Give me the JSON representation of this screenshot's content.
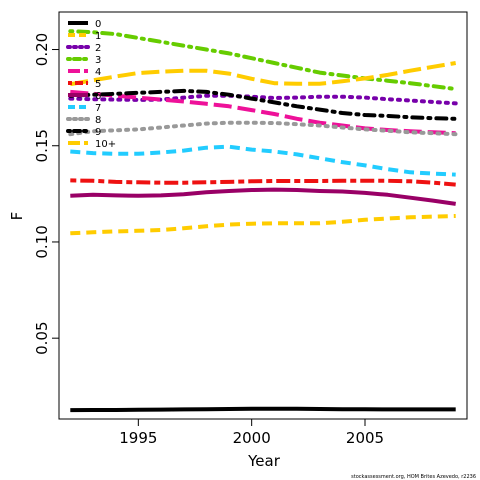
{
  "chart_data": {
    "type": "line",
    "xlabel": "Year",
    "ylabel": "F",
    "xlim": [
      1991.5,
      2009.5
    ],
    "ylim": [
      0.008,
      0.2195
    ],
    "xticks": [
      1995,
      2000,
      2005
    ],
    "yticks": [
      0.05,
      0.1,
      0.15,
      0.2
    ],
    "ytick_labels": [
      "0.05",
      "0.10",
      "0.15",
      "0.20"
    ],
    "x": [
      1992,
      1993,
      1994,
      1995,
      1996,
      1997,
      1998,
      1999,
      2000,
      2001,
      2002,
      2003,
      2004,
      2005,
      2006,
      2007,
      2008,
      2009
    ],
    "legend_position": "top-left",
    "series": [
      {
        "name": "0",
        "color": "#000000",
        "dash": "solid",
        "values": [
          0.0126,
          0.0127,
          0.0127,
          0.0128,
          0.0129,
          0.013,
          0.0131,
          0.0132,
          0.0133,
          0.0133,
          0.0133,
          0.0132,
          0.0131,
          0.0131,
          0.013,
          0.013,
          0.013,
          0.013
        ]
      },
      {
        "name": "1",
        "color": "#FFCC00",
        "dash": "dashed",
        "values": [
          0.1045,
          0.105,
          0.1055,
          0.1058,
          0.1062,
          0.1071,
          0.1082,
          0.109,
          0.1095,
          0.1097,
          0.1097,
          0.1097,
          0.1105,
          0.1115,
          0.1122,
          0.1128,
          0.1132,
          0.1135
        ]
      },
      {
        "name": "2",
        "color": "#7700AA",
        "dash": "dotted",
        "values": [
          0.1745,
          0.1742,
          0.174,
          0.1738,
          0.174,
          0.175,
          0.176,
          0.176,
          0.1755,
          0.1748,
          0.175,
          0.1755,
          0.1755,
          0.175,
          0.1742,
          0.1735,
          0.1728,
          0.172
        ]
      },
      {
        "name": "3",
        "color": "#66CC00",
        "dash": "dotdash",
        "values": [
          0.2095,
          0.209,
          0.208,
          0.206,
          0.204,
          0.202,
          0.2,
          0.198,
          0.1955,
          0.193,
          0.1905,
          0.188,
          0.1865,
          0.185,
          0.1838,
          0.1825,
          0.181,
          0.1795
        ]
      },
      {
        "name": "4",
        "color": "#EE1199",
        "dash": "longdash",
        "values": [
          0.178,
          0.177,
          0.176,
          0.175,
          0.174,
          0.173,
          0.1718,
          0.1705,
          0.1685,
          0.1665,
          0.164,
          0.162,
          0.1605,
          0.159,
          0.1582,
          0.1575,
          0.157,
          0.1565
        ]
      },
      {
        "name": "5",
        "color": "#EE1111",
        "dash": "twodash",
        "values": [
          0.132,
          0.1318,
          0.1312,
          0.131,
          0.1308,
          0.1308,
          0.131,
          0.1312,
          0.1315,
          0.1317,
          0.1317,
          0.1317,
          0.1318,
          0.1318,
          0.1318,
          0.1315,
          0.1308,
          0.1298
        ]
      },
      {
        "name": "6",
        "color": "#990066",
        "dash": "solid",
        "values": [
          0.124,
          0.1245,
          0.1242,
          0.124,
          0.1242,
          0.1248,
          0.1258,
          0.1265,
          0.127,
          0.1272,
          0.127,
          0.1265,
          0.1262,
          0.1255,
          0.1245,
          0.123,
          0.1215,
          0.1198
        ]
      },
      {
        "name": "7",
        "color": "#22CCFF",
        "dash": "dashed",
        "values": [
          0.147,
          0.1462,
          0.1458,
          0.1458,
          0.1465,
          0.1475,
          0.149,
          0.1495,
          0.148,
          0.147,
          0.1455,
          0.1435,
          0.1415,
          0.1398,
          0.1378,
          0.1362,
          0.1355,
          0.135
        ]
      },
      {
        "name": "8",
        "color": "#999999",
        "dash": "dotted",
        "values": [
          0.156,
          0.1575,
          0.158,
          0.1585,
          0.1595,
          0.1605,
          0.1615,
          0.162,
          0.162,
          0.1618,
          0.1612,
          0.1605,
          0.1595,
          0.1585,
          0.1578,
          0.157,
          0.1565,
          0.156
        ]
      },
      {
        "name": "9",
        "color": "#000000",
        "dash": "dotdash",
        "values": [
          0.176,
          0.1765,
          0.177,
          0.1775,
          0.178,
          0.1785,
          0.178,
          0.1765,
          0.1745,
          0.1725,
          0.1705,
          0.1688,
          0.167,
          0.166,
          0.1655,
          0.1648,
          0.1643,
          0.164
        ]
      },
      {
        "name": "10+",
        "color": "#FFCC00",
        "dash": "longdash",
        "values": [
          0.182,
          0.184,
          0.186,
          0.1878,
          0.1885,
          0.189,
          0.189,
          0.1875,
          0.1848,
          0.1825,
          0.1822,
          0.1822,
          0.1835,
          0.185,
          0.1868,
          0.189,
          0.191,
          0.193
        ]
      }
    ],
    "credit": "stockassessment.org,  HOM Brites  Azevedo, r2236"
  }
}
